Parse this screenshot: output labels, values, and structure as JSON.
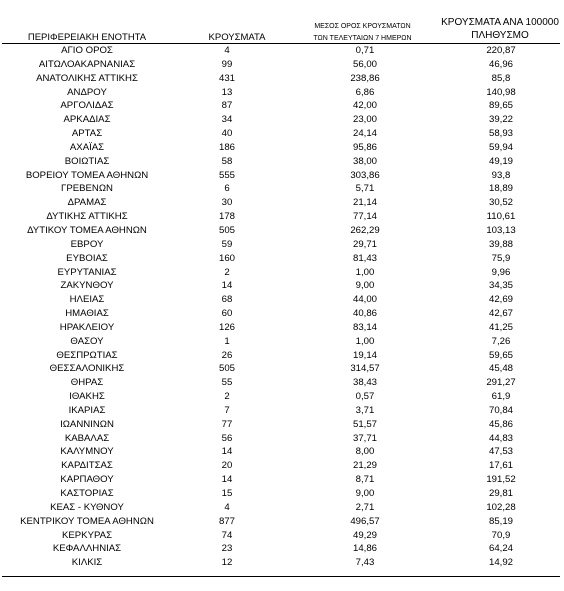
{
  "headers": {
    "region": "ΠΕΡΙΦΕΡΕΙΑΚΗ ΕΝΟΤΗΤΑ",
    "cases": "ΚΡΟΥΣΜΑΤΑ",
    "avg_line1": "ΜΕΣΟΣ ΟΡΟΣ ΚΡΟΥΣΜΑΤΩΝ",
    "avg_line2": "ΤΩΝ ΤΕΛΕΥΤΑΙΩΝ 7 ΗΜΕΡΩΝ",
    "per_line1": "ΚΡΟΥΣΜΑΤΑ ΑΝΑ 100000",
    "per_line2": "ΠΛΗΘΥΣΜΟ"
  },
  "rows": [
    {
      "region": "ΑΓΙΟ ΟΡΟΣ",
      "cases": "4",
      "avg": "0,71",
      "per100k": "220,87"
    },
    {
      "region": "ΑΙΤΩΛΟΑΚΑΡΝΑΝΙΑΣ",
      "cases": "99",
      "avg": "56,00",
      "per100k": "46,96"
    },
    {
      "region": "ΑΝΑΤΟΛΙΚΗΣ ΑΤΤΙΚΗΣ",
      "cases": "431",
      "avg": "238,86",
      "per100k": "85,8"
    },
    {
      "region": "ΑΝΔΡΟΥ",
      "cases": "13",
      "avg": "6,86",
      "per100k": "140,98"
    },
    {
      "region": "ΑΡΓΟΛΙΔΑΣ",
      "cases": "87",
      "avg": "42,00",
      "per100k": "89,65"
    },
    {
      "region": "ΑΡΚΑΔΙΑΣ",
      "cases": "34",
      "avg": "23,00",
      "per100k": "39,22"
    },
    {
      "region": "ΑΡΤΑΣ",
      "cases": "40",
      "avg": "24,14",
      "per100k": "58,93"
    },
    {
      "region": "ΑΧΑΪΑΣ",
      "cases": "186",
      "avg": "95,86",
      "per100k": "59,94"
    },
    {
      "region": "ΒΟΙΩΤΙΑΣ",
      "cases": "58",
      "avg": "38,00",
      "per100k": "49,19"
    },
    {
      "region": "ΒΟΡΕΙΟΥ ΤΟΜΕΑ ΑΘΗΝΩΝ",
      "cases": "555",
      "avg": "303,86",
      "per100k": "93,8"
    },
    {
      "region": "ΓΡΕΒΕΝΩΝ",
      "cases": "6",
      "avg": "5,71",
      "per100k": "18,89"
    },
    {
      "region": "ΔΡΑΜΑΣ",
      "cases": "30",
      "avg": "21,14",
      "per100k": "30,52"
    },
    {
      "region": "ΔΥΤΙΚΗΣ ΑΤΤΙΚΗΣ",
      "cases": "178",
      "avg": "77,14",
      "per100k": "110,61"
    },
    {
      "region": "ΔΥΤΙΚΟΥ ΤΟΜΕΑ ΑΘΗΝΩΝ",
      "cases": "505",
      "avg": "262,29",
      "per100k": "103,13"
    },
    {
      "region": "ΕΒΡΟΥ",
      "cases": "59",
      "avg": "29,71",
      "per100k": "39,88"
    },
    {
      "region": "ΕΥΒΟΙΑΣ",
      "cases": "160",
      "avg": "81,43",
      "per100k": "75,9"
    },
    {
      "region": "ΕΥΡΥΤΑΝΙΑΣ",
      "cases": "2",
      "avg": "1,00",
      "per100k": "9,96"
    },
    {
      "region": "ΖΑΚΥΝΘΟΥ",
      "cases": "14",
      "avg": "9,00",
      "per100k": "34,35"
    },
    {
      "region": "ΗΛΕΙΑΣ",
      "cases": "68",
      "avg": "44,00",
      "per100k": "42,69"
    },
    {
      "region": "ΗΜΑΘΙΑΣ",
      "cases": "60",
      "avg": "40,86",
      "per100k": "42,67"
    },
    {
      "region": "ΗΡΑΚΛΕΙΟΥ",
      "cases": "126",
      "avg": "83,14",
      "per100k": "41,25"
    },
    {
      "region": "ΘΑΣΟΥ",
      "cases": "1",
      "avg": "1,00",
      "per100k": "7,26"
    },
    {
      "region": "ΘΕΣΠΡΩΤΙΑΣ",
      "cases": "26",
      "avg": "19,14",
      "per100k": "59,65"
    },
    {
      "region": "ΘΕΣΣΑΛΟΝΙΚΗΣ",
      "cases": "505",
      "avg": "314,57",
      "per100k": "45,48"
    },
    {
      "region": "ΘΗΡΑΣ",
      "cases": "55",
      "avg": "38,43",
      "per100k": "291,27"
    },
    {
      "region": "ΙΘΑΚΗΣ",
      "cases": "2",
      "avg": "0,57",
      "per100k": "61,9"
    },
    {
      "region": "ΙΚΑΡΙΑΣ",
      "cases": "7",
      "avg": "3,71",
      "per100k": "70,84"
    },
    {
      "region": "ΙΩΑΝΝΙΝΩΝ",
      "cases": "77",
      "avg": "51,57",
      "per100k": "45,86"
    },
    {
      "region": "ΚΑΒΑΛΑΣ",
      "cases": "56",
      "avg": "37,71",
      "per100k": "44,83"
    },
    {
      "region": "ΚΑΛΥΜΝΟΥ",
      "cases": "14",
      "avg": "8,00",
      "per100k": "47,53"
    },
    {
      "region": "ΚΑΡΔΙΤΣΑΣ",
      "cases": "20",
      "avg": "21,29",
      "per100k": "17,61"
    },
    {
      "region": "ΚΑΡΠΑΘΟΥ",
      "cases": "14",
      "avg": "8,71",
      "per100k": "191,52"
    },
    {
      "region": "ΚΑΣΤΟΡΙΑΣ",
      "cases": "15",
      "avg": "9,00",
      "per100k": "29,81"
    },
    {
      "region": "ΚΕΑΣ - ΚΥΘΝΟΥ",
      "cases": "4",
      "avg": "2,71",
      "per100k": "102,28"
    },
    {
      "region": "ΚΕΝΤΡΙΚΟΥ ΤΟΜΕΑ ΑΘΗΝΩΝ",
      "cases": "877",
      "avg": "496,57",
      "per100k": "85,19"
    },
    {
      "region": "ΚΕΡΚΥΡΑΣ",
      "cases": "74",
      "avg": "49,29",
      "per100k": "70,9"
    },
    {
      "region": "ΚΕΦΑΛΛΗΝΙΑΣ",
      "cases": "23",
      "avg": "14,86",
      "per100k": "64,24"
    },
    {
      "region": "ΚΙΛΚΙΣ",
      "cases": "12",
      "avg": "7,43",
      "per100k": "14,92"
    }
  ]
}
